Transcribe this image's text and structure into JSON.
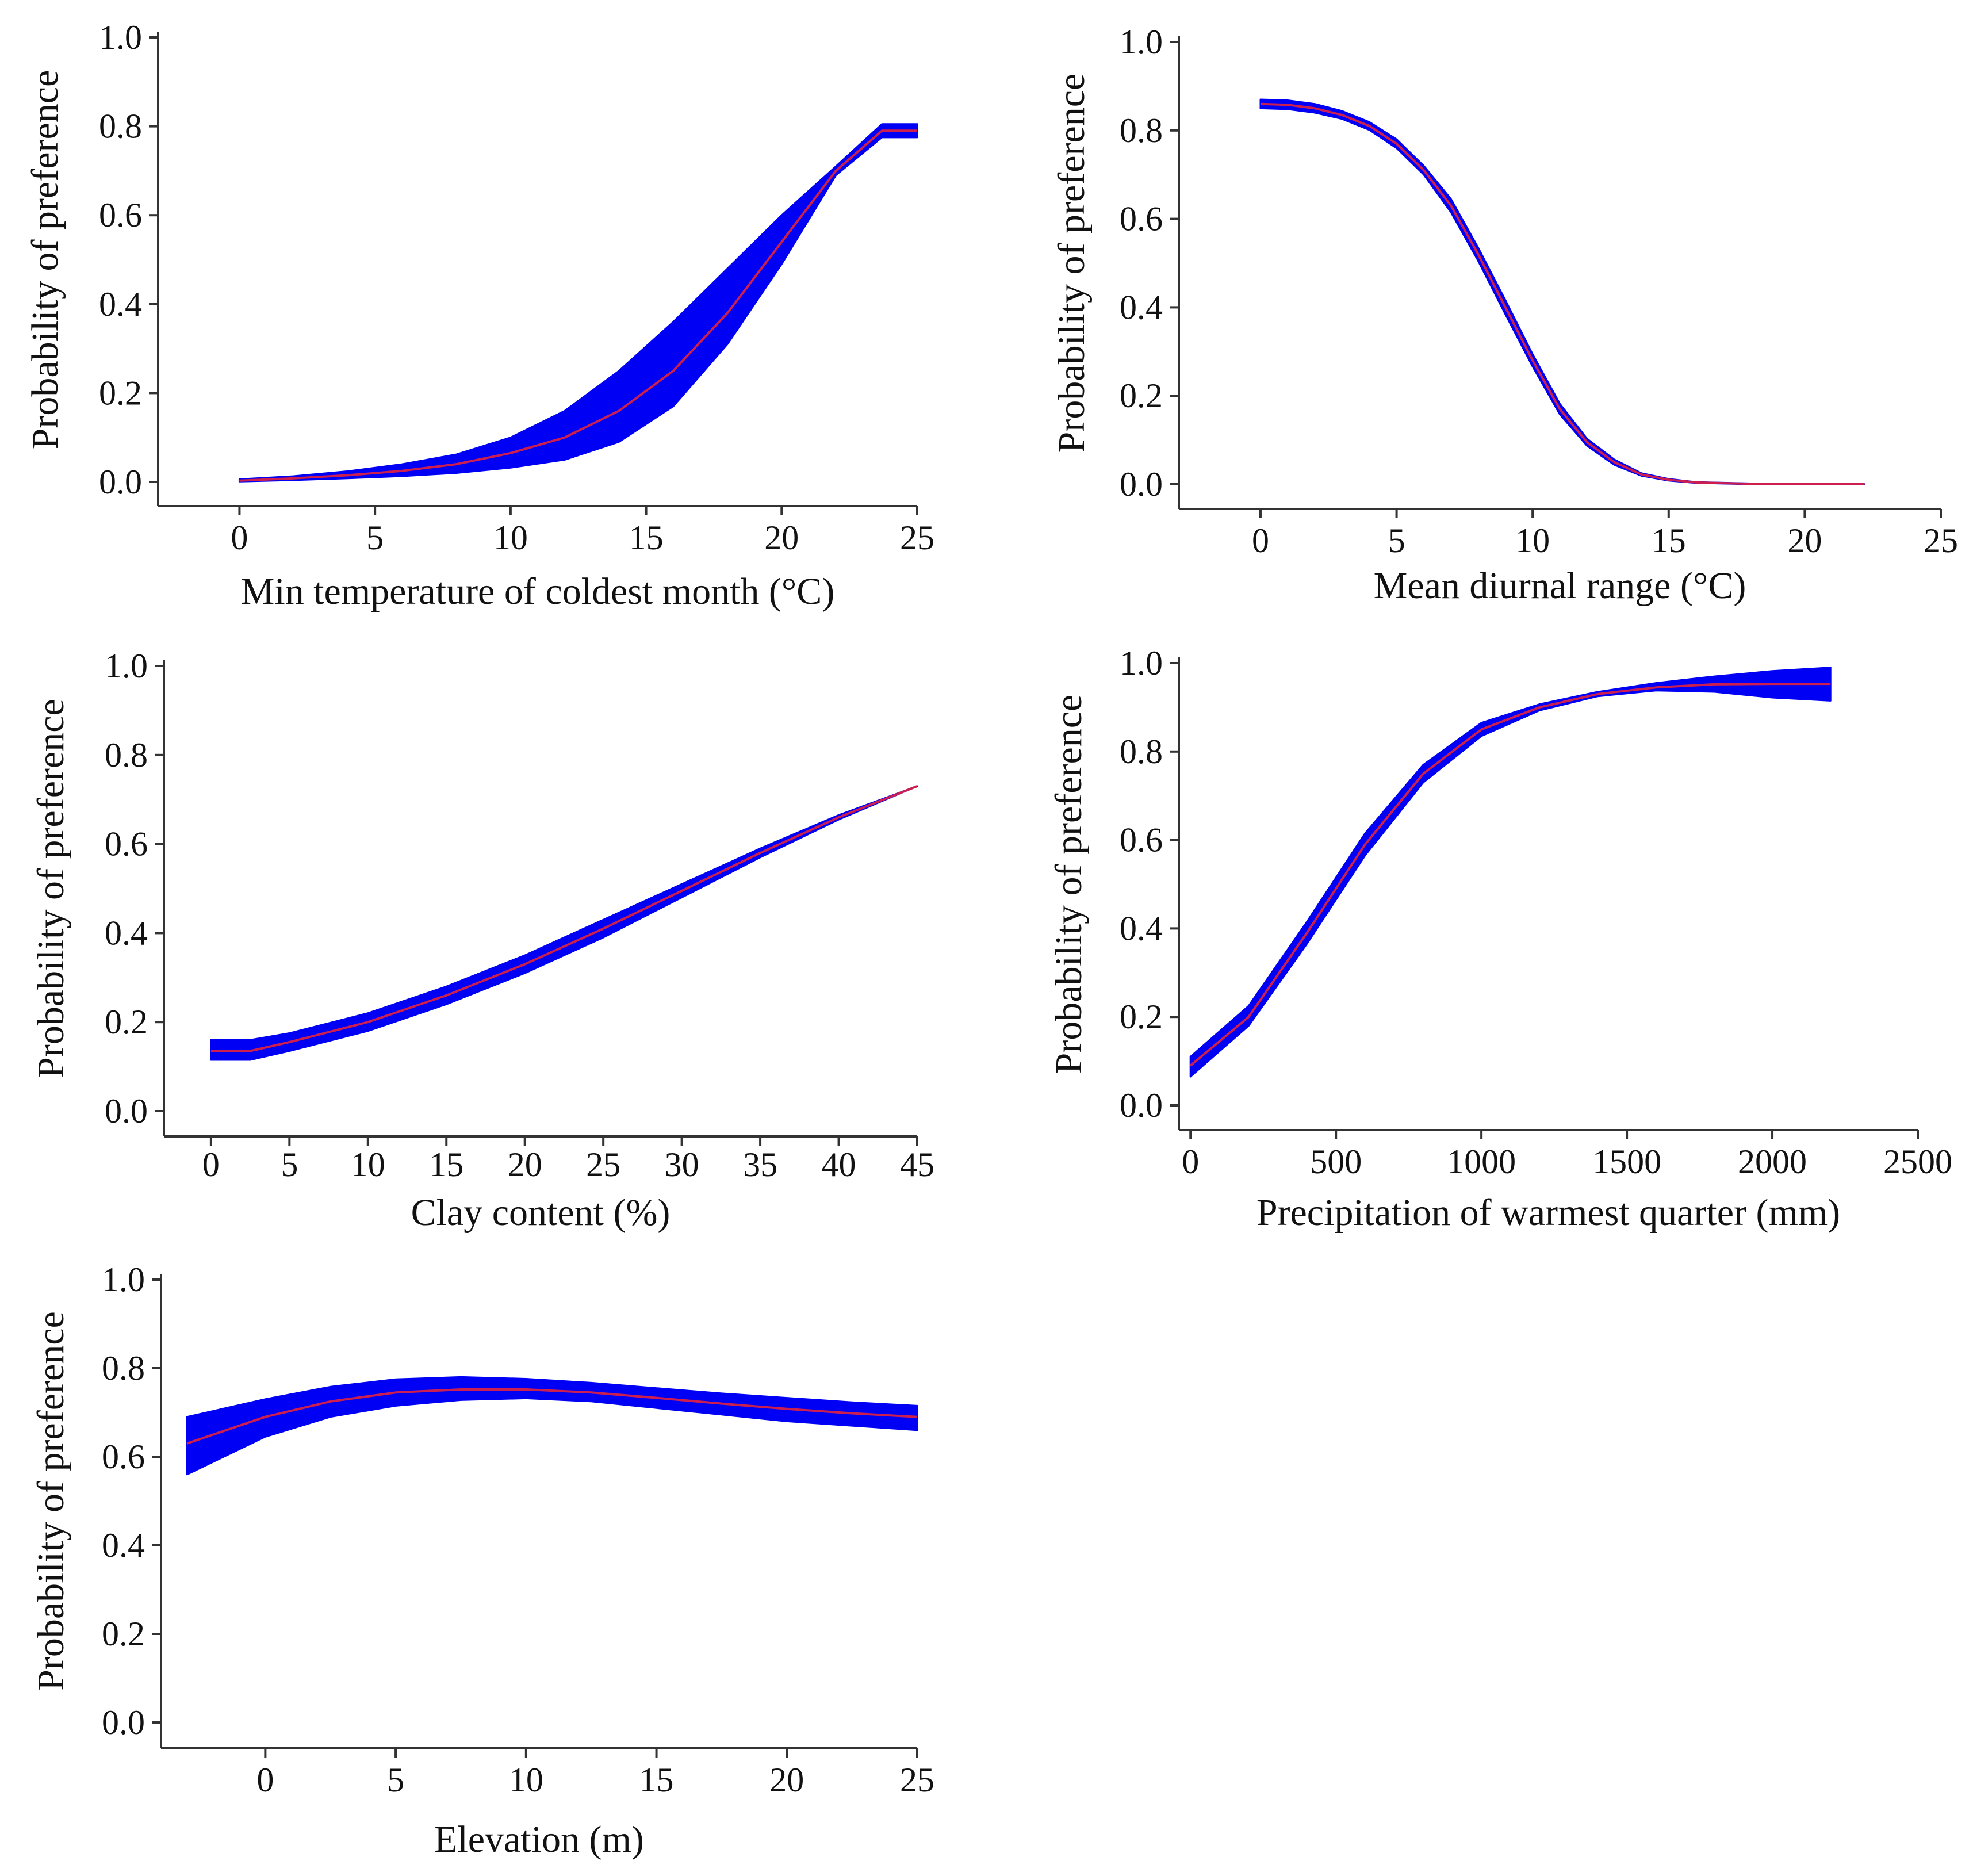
{
  "colors": {
    "band": "#0000f5",
    "line": "#cc1f4f",
    "axis": "#333333",
    "text": "#111111"
  },
  "chart_data": [
    {
      "id": "min-temp",
      "type": "line",
      "title": "",
      "xlabel": "Min temperature of coldest month (°C)",
      "ylabel": "Probability of preference",
      "xlim": [
        -3,
        25
      ],
      "ylim": [
        0,
        1
      ],
      "xticks": [
        "0",
        "5",
        "10",
        "15",
        "20",
        "25"
      ],
      "yticks": [
        "0.0",
        "0.2",
        "0.4",
        "0.6",
        "0.8",
        "1.0"
      ],
      "x": [
        0,
        2,
        4,
        6,
        8,
        10,
        12,
        14,
        16,
        18,
        20,
        22,
        23.7,
        25
      ],
      "mean": [
        0.003,
        0.008,
        0.015,
        0.025,
        0.04,
        0.065,
        0.1,
        0.16,
        0.25,
        0.38,
        0.54,
        0.7,
        0.79,
        0.79
      ],
      "lower": [
        0.001,
        0.004,
        0.008,
        0.013,
        0.02,
        0.032,
        0.05,
        0.09,
        0.17,
        0.31,
        0.49,
        0.69,
        0.775,
        0.775
      ],
      "upper": [
        0.006,
        0.013,
        0.024,
        0.04,
        0.062,
        0.1,
        0.16,
        0.25,
        0.36,
        0.48,
        0.6,
        0.71,
        0.805,
        0.805
      ]
    },
    {
      "id": "diurnal-range",
      "type": "line",
      "title": "",
      "xlabel": "Mean diurnal range (°C)",
      "ylabel": "Probability of preference",
      "xlim": [
        -3,
        25
      ],
      "ylim": [
        0,
        1
      ],
      "xticks": [
        "0",
        "5",
        "10",
        "15",
        "20",
        "25"
      ],
      "yticks": [
        "0.0",
        "0.2",
        "0.4",
        "0.6",
        "0.8",
        "1.0"
      ],
      "x": [
        0,
        1,
        2,
        3,
        4,
        5,
        6,
        7,
        8,
        9,
        10,
        11,
        12,
        13,
        14,
        15,
        16,
        18,
        20,
        22.2
      ],
      "mean": [
        0.86,
        0.858,
        0.85,
        0.835,
        0.81,
        0.77,
        0.71,
        0.63,
        0.52,
        0.4,
        0.28,
        0.17,
        0.095,
        0.05,
        0.022,
        0.01,
        0.004,
        0.001,
        0.0,
        0.0
      ],
      "lower": [
        0.85,
        0.848,
        0.84,
        0.826,
        0.801,
        0.76,
        0.7,
        0.615,
        0.505,
        0.384,
        0.266,
        0.158,
        0.087,
        0.044,
        0.019,
        0.008,
        0.003,
        0.0,
        0.0,
        0.0
      ],
      "upper": [
        0.87,
        0.868,
        0.86,
        0.844,
        0.819,
        0.78,
        0.72,
        0.645,
        0.535,
        0.416,
        0.294,
        0.182,
        0.103,
        0.056,
        0.025,
        0.012,
        0.005,
        0.002,
        0.001,
        0.0
      ]
    },
    {
      "id": "clay",
      "type": "line",
      "title": "",
      "xlabel": "Clay content (%)",
      "ylabel": "Probability of preference",
      "xlim": [
        -3,
        45
      ],
      "ylim": [
        0,
        1
      ],
      "xticks": [
        "0",
        "5",
        "10",
        "15",
        "20",
        "25",
        "30",
        "35",
        "40",
        "45"
      ],
      "yticks": [
        "0.0",
        "0.2",
        "0.4",
        "0.6",
        "0.8",
        "1.0"
      ],
      "x": [
        0,
        2.5,
        5,
        10,
        15,
        20,
        25,
        30,
        35,
        40,
        45
      ],
      "mean": [
        0.135,
        0.135,
        0.155,
        0.2,
        0.26,
        0.33,
        0.41,
        0.495,
        0.58,
        0.66,
        0.73
      ],
      "lower": [
        0.115,
        0.115,
        0.135,
        0.18,
        0.24,
        0.31,
        0.39,
        0.48,
        0.57,
        0.655,
        0.73
      ],
      "upper": [
        0.16,
        0.16,
        0.175,
        0.22,
        0.28,
        0.35,
        0.43,
        0.51,
        0.59,
        0.665,
        0.73
      ]
    },
    {
      "id": "precip",
      "type": "line",
      "title": "",
      "xlabel": "Precipitation of warmest quarter (mm)",
      "ylabel": "Probability of preference",
      "xlim": [
        -40,
        2500
      ],
      "ylim": [
        0,
        1
      ],
      "xticks": [
        "0",
        "500",
        "1000",
        "1500",
        "2000",
        "2500"
      ],
      "yticks": [
        "0.0",
        "0.2",
        "0.4",
        "0.6",
        "0.8",
        "1.0"
      ],
      "x": [
        0,
        200,
        400,
        600,
        800,
        1000,
        1200,
        1400,
        1600,
        1800,
        2000,
        2200
      ],
      "mean": [
        0.09,
        0.2,
        0.39,
        0.59,
        0.75,
        0.85,
        0.9,
        0.93,
        0.945,
        0.952,
        0.953,
        0.953
      ],
      "lower": [
        0.065,
        0.18,
        0.365,
        0.565,
        0.73,
        0.835,
        0.893,
        0.925,
        0.938,
        0.935,
        0.922,
        0.915
      ],
      "upper": [
        0.11,
        0.225,
        0.415,
        0.615,
        0.77,
        0.865,
        0.907,
        0.935,
        0.955,
        0.97,
        0.982,
        0.99
      ]
    },
    {
      "id": "elevation",
      "type": "line",
      "title": "",
      "xlabel": "Elevation (m)",
      "ylabel": "Probability of preference",
      "xlim": [
        -4,
        25
      ],
      "ylim": [
        0,
        1
      ],
      "xticks": [
        "0",
        "5",
        "10",
        "15",
        "20",
        "25"
      ],
      "yticks": [
        "0.0",
        "0.2",
        "0.4",
        "0.6",
        "0.8",
        "1.0"
      ],
      "x": [
        -3,
        0,
        2.5,
        5,
        7.5,
        10,
        12.5,
        15,
        17.5,
        20,
        22.5,
        25
      ],
      "mean": [
        0.63,
        0.69,
        0.725,
        0.745,
        0.752,
        0.752,
        0.745,
        0.733,
        0.72,
        0.708,
        0.698,
        0.69
      ],
      "lower": [
        0.56,
        0.645,
        0.69,
        0.715,
        0.728,
        0.732,
        0.725,
        0.71,
        0.695,
        0.68,
        0.67,
        0.66
      ],
      "upper": [
        0.69,
        0.73,
        0.758,
        0.775,
        0.78,
        0.776,
        0.767,
        0.755,
        0.743,
        0.733,
        0.723,
        0.715
      ]
    }
  ]
}
